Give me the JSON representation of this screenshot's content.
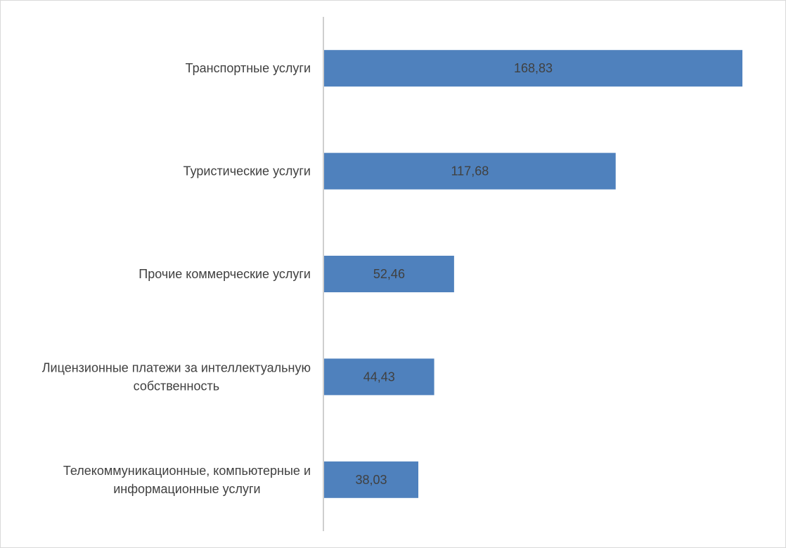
{
  "chart_data": {
    "type": "bar",
    "orientation": "horizontal",
    "categories": [
      [
        "Транспортные услуги"
      ],
      [
        "Туристические услуги"
      ],
      [
        "Прочие коммерческие услуги"
      ],
      [
        "Лицензионные платежи за интеллектуальную",
        "собственность"
      ],
      [
        "Телекоммуникационные, компьютерные и",
        "информационные услуги"
      ]
    ],
    "values": [
      168.83,
      117.68,
      52.46,
      44.43,
      38.03
    ],
    "value_labels": [
      "168,83",
      "117,68",
      "52,46",
      "44,43",
      "38,03"
    ],
    "title": "",
    "xlabel": "",
    "ylabel": "",
    "xlim": [
      0,
      168.83
    ],
    "grid": false,
    "legend": "none",
    "bar_color": "#4f81bd",
    "axis_color": "#bfbfbf"
  }
}
